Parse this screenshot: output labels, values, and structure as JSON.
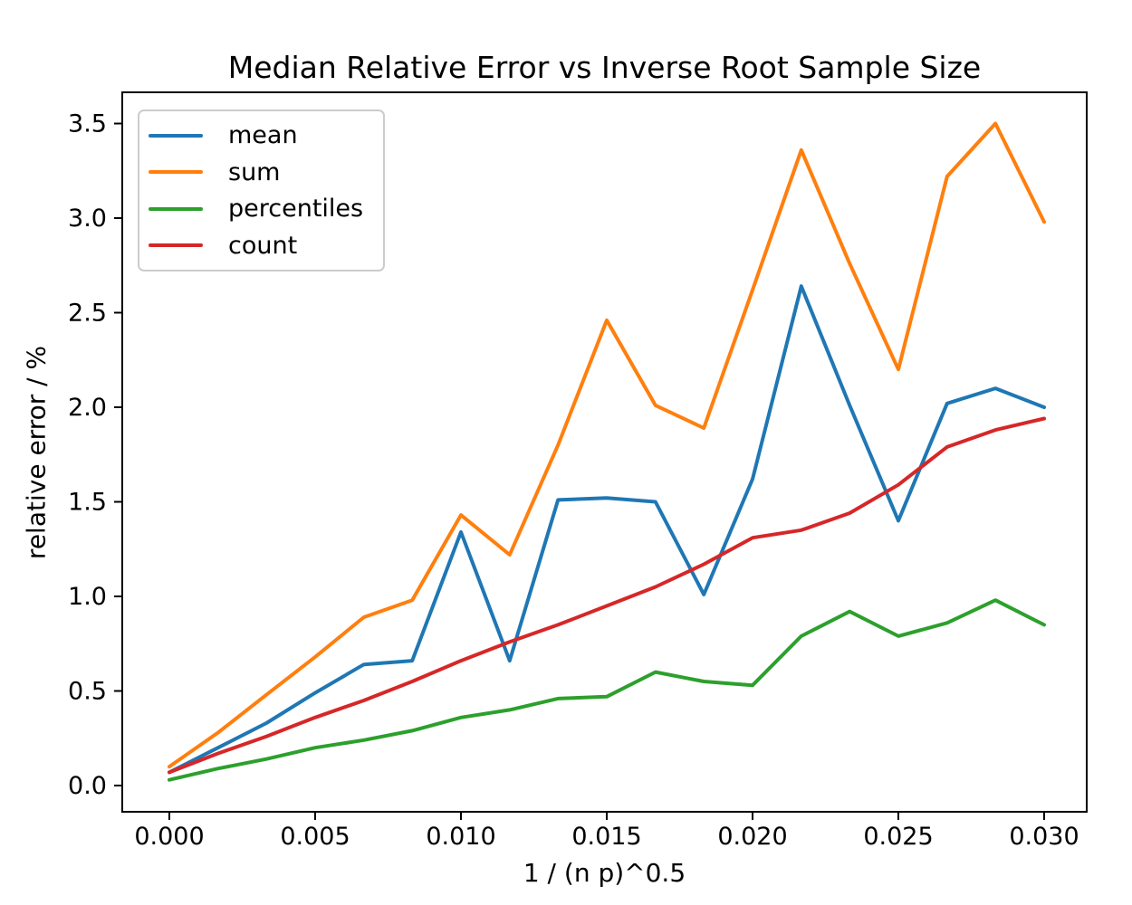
{
  "chart_data": {
    "type": "line",
    "title": "Median Relative Error vs Inverse Root Sample Size",
    "xlabel": "1 / (n p)^0.5",
    "ylabel": "relative error / %",
    "grid": false,
    "legend_position": "upper left",
    "xlim": [
      0.0,
      0.03
    ],
    "ylim": [
      0.0,
      3.5
    ],
    "xticks": [
      {
        "value": 0.0,
        "label": "0.000"
      },
      {
        "value": 0.005,
        "label": "0.005"
      },
      {
        "value": 0.01,
        "label": "0.010"
      },
      {
        "value": 0.015,
        "label": "0.015"
      },
      {
        "value": 0.02,
        "label": "0.020"
      },
      {
        "value": 0.025,
        "label": "0.025"
      },
      {
        "value": 0.03,
        "label": "0.030"
      }
    ],
    "yticks": [
      {
        "value": 0.0,
        "label": "0.0"
      },
      {
        "value": 0.5,
        "label": "0.5"
      },
      {
        "value": 1.0,
        "label": "1.0"
      },
      {
        "value": 1.5,
        "label": "1.5"
      },
      {
        "value": 2.0,
        "label": "2.0"
      },
      {
        "value": 2.5,
        "label": "2.5"
      },
      {
        "value": 3.0,
        "label": "3.0"
      },
      {
        "value": 3.5,
        "label": "3.5"
      }
    ],
    "x": [
      0.0,
      0.00167,
      0.00333,
      0.005,
      0.00667,
      0.00833,
      0.01,
      0.01167,
      0.01333,
      0.015,
      0.01667,
      0.01833,
      0.02,
      0.02167,
      0.02333,
      0.025,
      0.02667,
      0.02833,
      0.03
    ],
    "series": [
      {
        "name": "mean",
        "color": "#1f77b4",
        "values": [
          0.07,
          0.2,
          0.33,
          0.49,
          0.64,
          0.66,
          1.34,
          0.66,
          1.51,
          1.52,
          1.5,
          1.01,
          1.62,
          2.64,
          2.01,
          1.4,
          2.02,
          2.1,
          2.0
        ]
      },
      {
        "name": "sum",
        "color": "#ff7f0e",
        "values": [
          0.1,
          0.28,
          0.48,
          0.68,
          0.89,
          0.98,
          1.43,
          1.22,
          1.8,
          2.46,
          2.01,
          1.89,
          2.62,
          3.36,
          2.76,
          2.2,
          3.22,
          3.5,
          2.98
        ]
      },
      {
        "name": "percentiles",
        "color": "#2ca02c",
        "values": [
          0.03,
          0.09,
          0.14,
          0.2,
          0.24,
          0.29,
          0.36,
          0.4,
          0.46,
          0.47,
          0.6,
          0.55,
          0.53,
          0.79,
          0.92,
          0.79,
          0.86,
          0.98,
          0.85
        ]
      },
      {
        "name": "count",
        "color": "#d62728",
        "values": [
          0.07,
          0.17,
          0.26,
          0.36,
          0.45,
          0.55,
          0.66,
          0.76,
          0.85,
          0.95,
          1.05,
          1.17,
          1.31,
          1.35,
          1.44,
          1.59,
          1.79,
          1.88,
          1.94
        ]
      }
    ],
    "axis_color": "#000000",
    "background_color": "#ffffff"
  }
}
